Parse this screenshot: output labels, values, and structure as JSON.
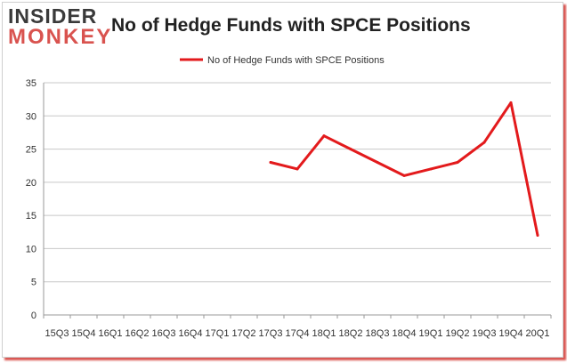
{
  "logo": {
    "line1": "INSIDER",
    "line2": "MONKEY"
  },
  "colors": {
    "series": "#e31a1c",
    "grid": "#c8c8c8",
    "brand_red": "#d9534f"
  },
  "chart_data": {
    "type": "line",
    "title": "No of Hedge Funds with SPCE Positions",
    "legend_position": "top-center",
    "grid": true,
    "ylim": [
      0,
      35
    ],
    "yticks": [
      0,
      5,
      10,
      15,
      20,
      25,
      30,
      35
    ],
    "categories": [
      "15Q3",
      "15Q4",
      "16Q1",
      "16Q2",
      "16Q3",
      "16Q4",
      "17Q1",
      "17Q2",
      "17Q3",
      "17Q4",
      "18Q1",
      "18Q2",
      "18Q3",
      "18Q4",
      "19Q1",
      "19Q2",
      "19Q3",
      "19Q4",
      "20Q1"
    ],
    "series": [
      {
        "name": "No of Hedge Funds with SPCE Positions",
        "values": [
          null,
          null,
          null,
          null,
          null,
          null,
          null,
          null,
          23,
          22,
          27,
          25,
          23,
          21,
          22,
          23,
          26,
          32,
          12
        ]
      }
    ]
  }
}
